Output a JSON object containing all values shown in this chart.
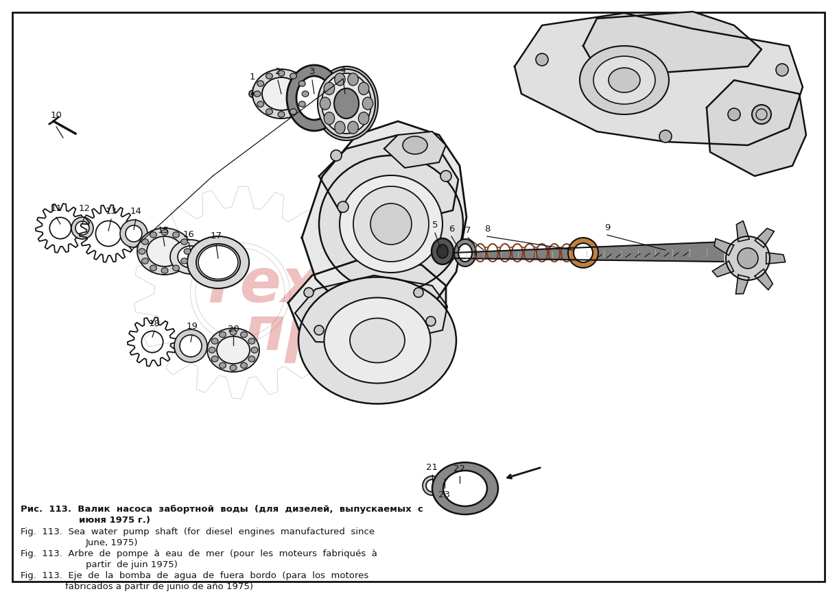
{
  "bg": "#f5f5f0",
  "border": "#111111",
  "black": "#111111",
  "gray_wm": "#cccccc",
  "red_wm": "#d04040",
  "caption_ru_line1": "Рис.  113.  Валик  насоса  забортной  воды  (для  дизелей,  выпускаемых  с",
  "caption_ru_line2": "июня 1975 г.)",
  "caption_en_line1": "Fig.  113.  Sea  water  pump  shaft  (for  diesel  engines  manufactured  since",
  "caption_en_line2": "June, 1975)",
  "caption_fr_line1": "Fig.  113.  Arbre  de  pompe  à  eau  de  mer  (pour  les  moteurs  fabriqués  à",
  "caption_fr_line2": "partir  de juin 1975)",
  "caption_es_line1": "Fig.  113.  Eje  de  la  bomba  de  agua  de  fuera  bordo  (para  los  motores",
  "caption_es_line2": "fabricados a partir de junio de año 1975)",
  "wm1": "Техно",
  "wm2": "пресс"
}
